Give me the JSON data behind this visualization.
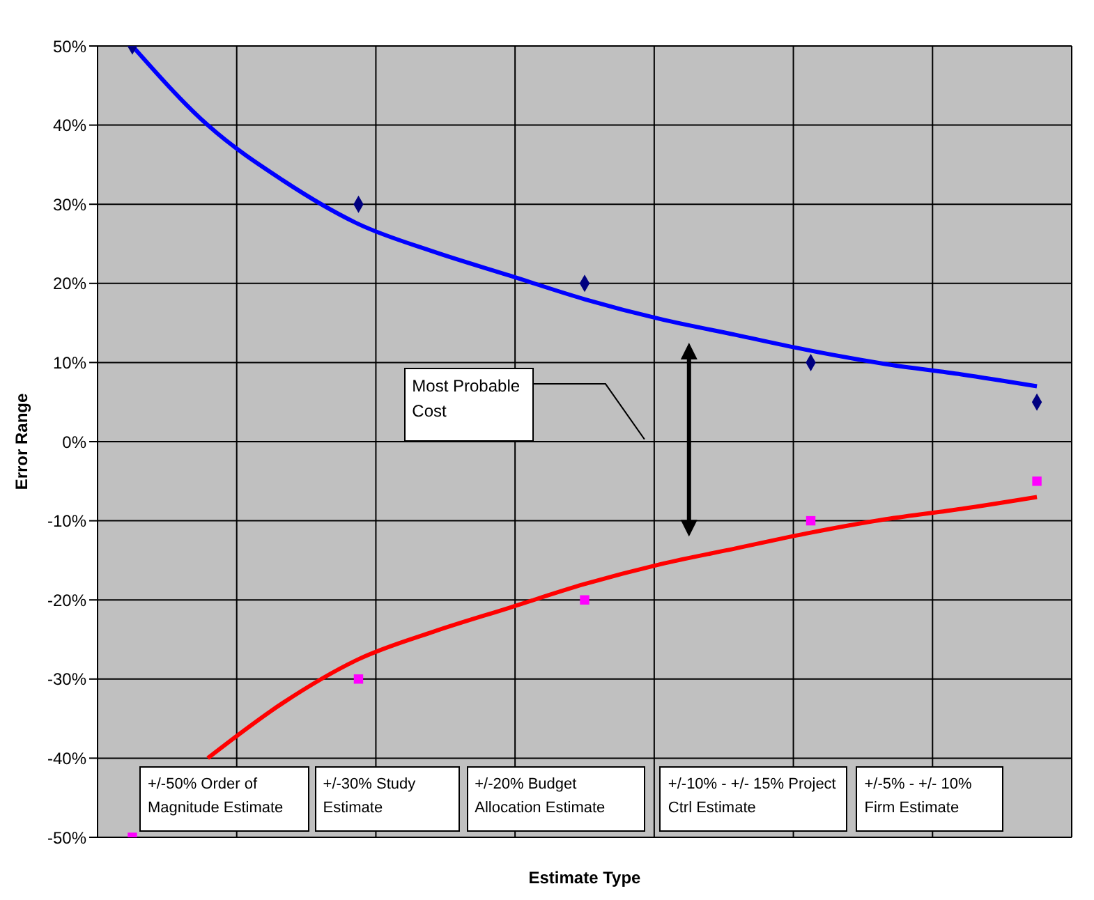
{
  "chart_data": {
    "type": "line",
    "xlabel": "Estimate Type",
    "ylabel": "Error Range",
    "grid": true,
    "tick_labels": "y",
    "categories": [
      null,
      null,
      null,
      null,
      null,
      null,
      null,
      null,
      null,
      null,
      null,
      null,
      null
    ],
    "ylim": [
      -50,
      50
    ],
    "yticks": [
      {
        "value": -50,
        "label": "-50%"
      },
      {
        "value": -40,
        "label": "-40%"
      },
      {
        "value": -30,
        "label": "-30%"
      },
      {
        "value": -20,
        "label": "-20%"
      },
      {
        "value": -10,
        "label": "-10%"
      },
      {
        "value": 0,
        "label": "0%"
      },
      {
        "value": 10,
        "label": "10%"
      },
      {
        "value": 20,
        "label": "20%"
      },
      {
        "value": 30,
        "label": "30%"
      },
      {
        "value": 40,
        "label": "40%"
      },
      {
        "value": 50,
        "label": "50%"
      }
    ],
    "series": [
      {
        "color": "#0000ff",
        "marker": "none",
        "values": [
          50,
          40,
          33,
          27.5,
          24,
          21,
          18,
          15.5,
          13.5,
          11.5,
          9.8,
          8.5,
          7
        ]
      },
      {
        "color": "#ff0000",
        "marker": "none",
        "values": [
          null,
          -40,
          -33,
          -27.5,
          -24,
          -21,
          -18,
          -15.5,
          -13.5,
          -11.5,
          -9.8,
          -8.5,
          -7
        ]
      },
      {
        "type": "scatter",
        "color": "#000080",
        "marker": "diamond",
        "values": [
          50,
          null,
          null,
          30,
          null,
          null,
          20,
          null,
          null,
          10,
          null,
          null,
          5
        ]
      },
      {
        "type": "scatter",
        "color": "#ff00ff",
        "marker": "square",
        "values": [
          -50,
          null,
          null,
          -30,
          null,
          null,
          -20,
          null,
          null,
          -10,
          null,
          null,
          -5
        ]
      }
    ],
    "annotations": [
      "Most Probable Cost",
      "+/-50%  Order of Magnitude Estimate",
      "+/-30% Study Estimate",
      "+/-20% Budget Allocation Estimate",
      "+/-10% - +/- 15% Project Ctrl Estimate",
      "+/-5% - +/- 10% Firm Estimate"
    ]
  }
}
